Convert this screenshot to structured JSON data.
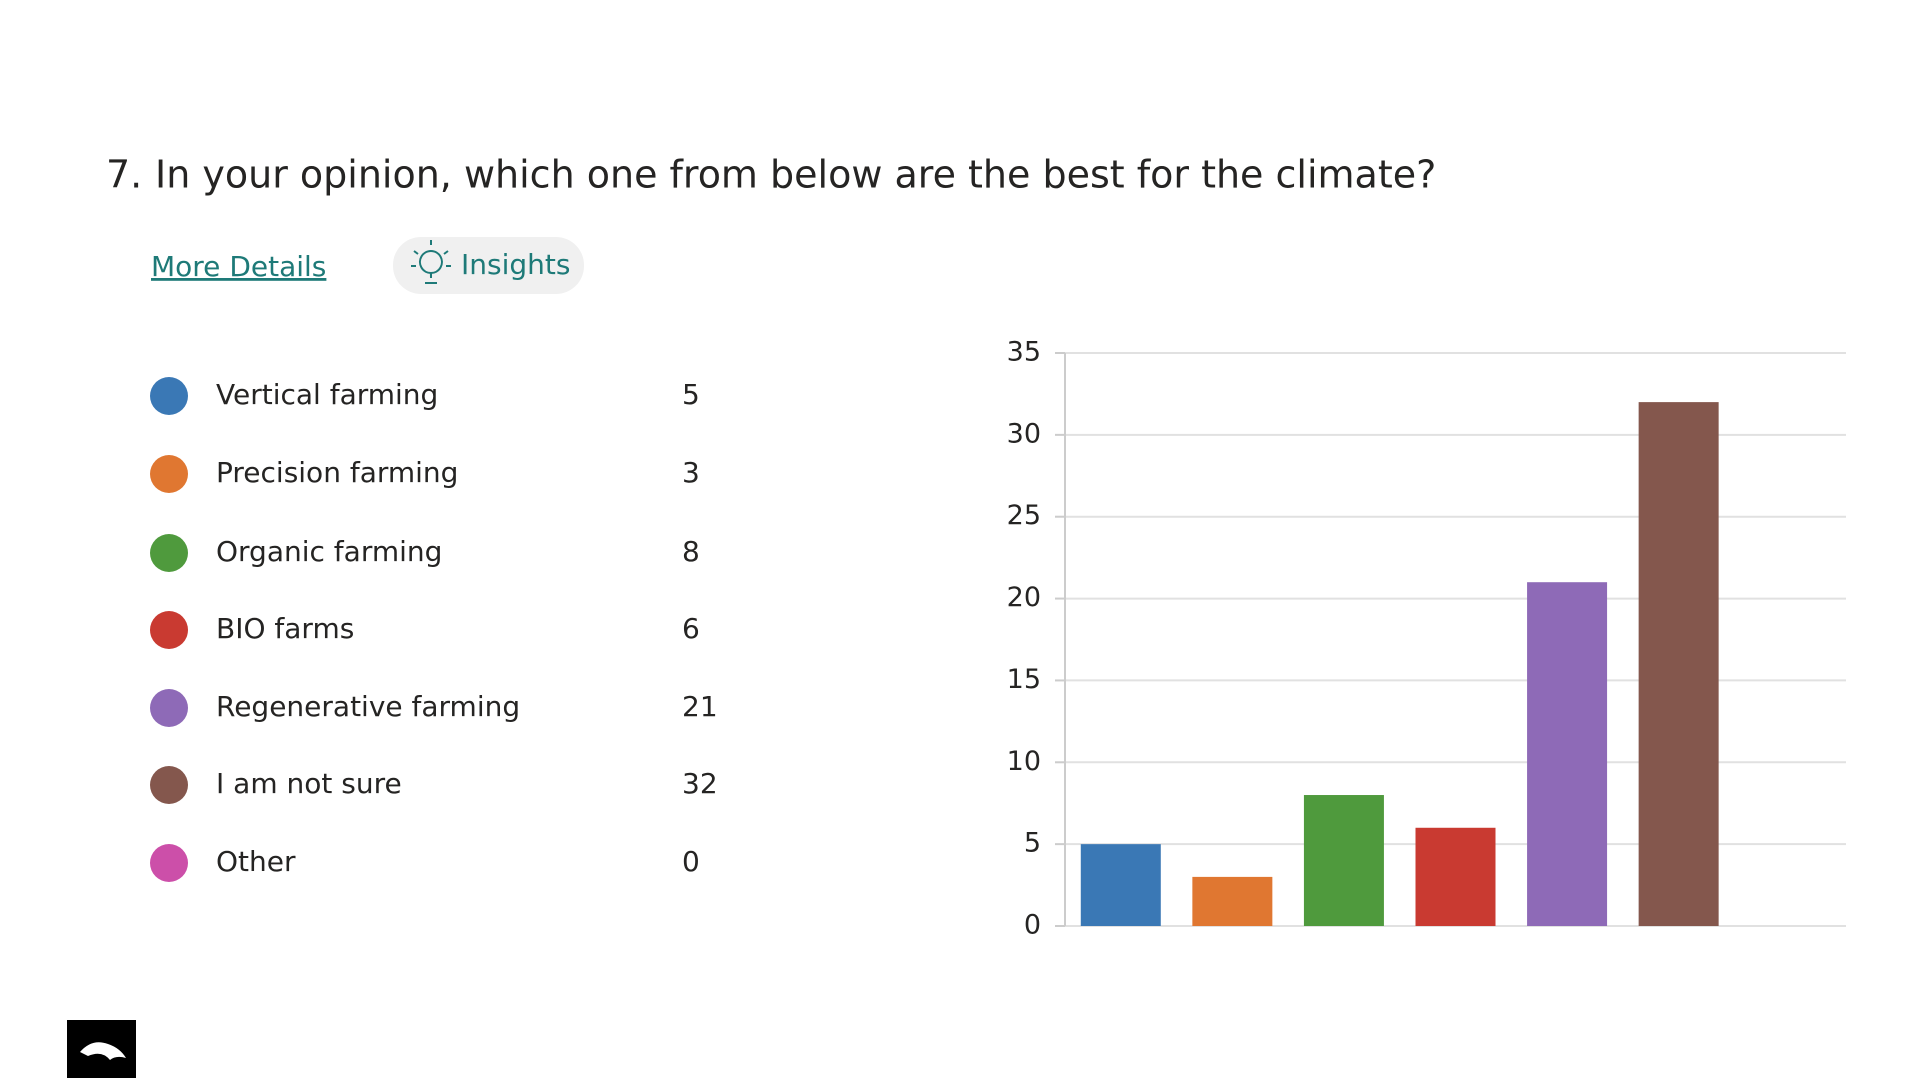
{
  "question_number": "7.",
  "question": "In your opinion, which one from below are the best for the climate?",
  "links": {
    "details": "More Details",
    "insights": "Insights"
  },
  "chart_data": {
    "type": "bar",
    "categories": [
      "Vertical farming",
      "Precision farming",
      "Organic farming",
      "BIO farms",
      "Regenerative farming",
      "I am not sure",
      "Other"
    ],
    "values": [
      5,
      3,
      8,
      6,
      21,
      32,
      0
    ],
    "colors": [
      "#3a78b5",
      "#e07731",
      "#4f9a3d",
      "#c93a31",
      "#8e6ab7",
      "#84574d",
      "#cc4fa9"
    ],
    "ylim": [
      0,
      35
    ],
    "yticks": [
      0,
      5,
      10,
      15,
      20,
      25,
      30,
      35
    ],
    "grid": true
  }
}
